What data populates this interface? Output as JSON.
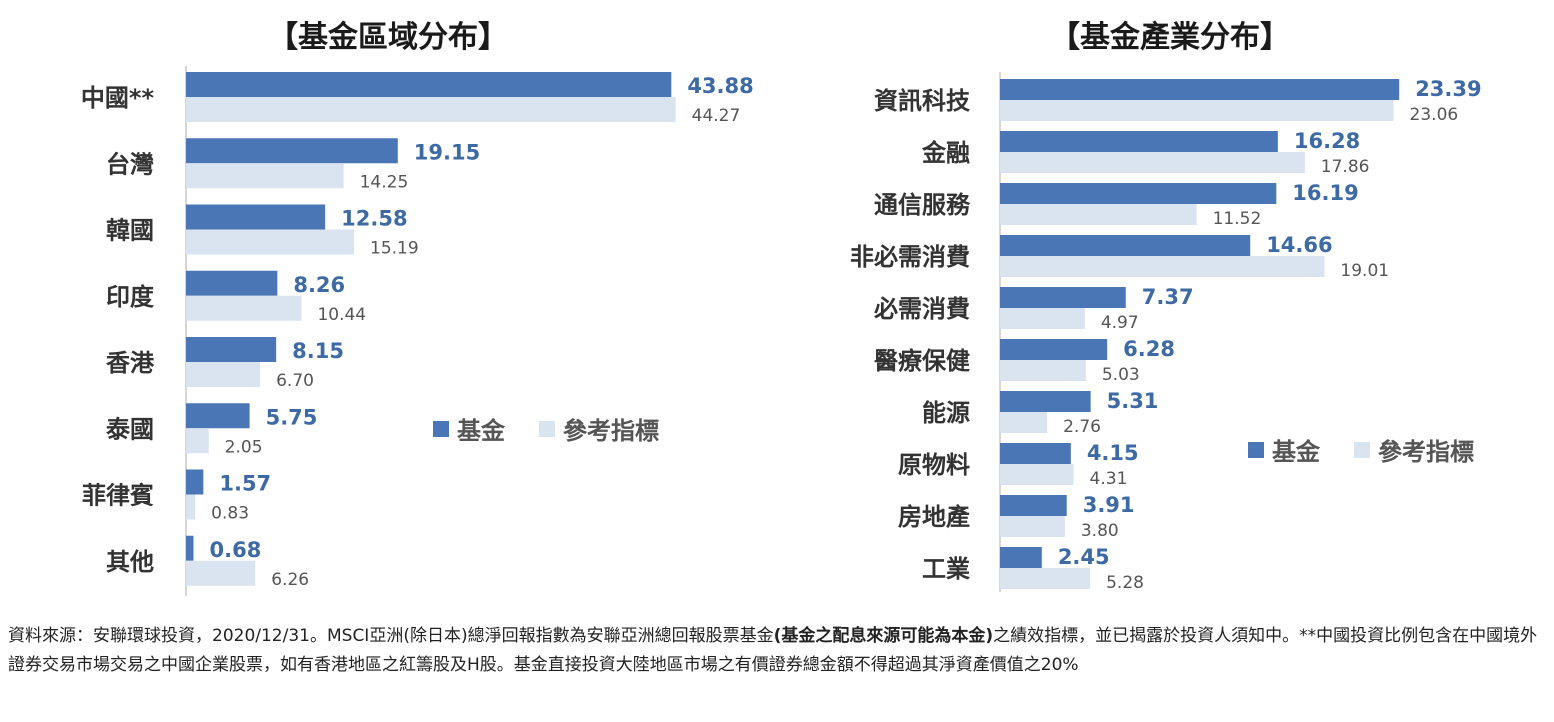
{
  "colors": {
    "fund": "#4a76b5",
    "benchmark": "#dae3f0",
    "fund_text": "#3d6aa5",
    "bench_text": "#555555",
    "axis": "#c8c8c8"
  },
  "legend": {
    "fund": "基金",
    "benchmark": "參考指標"
  },
  "chart_data": [
    {
      "type": "bar",
      "orientation": "horizontal",
      "title": "【基金區域分布】",
      "categories": [
        "中國**",
        "台灣",
        "韓國",
        "印度",
        "香港",
        "泰國",
        "菲律賓",
        "其他"
      ],
      "series": [
        {
          "name": "基金",
          "values": [
            43.88,
            19.15,
            12.58,
            8.26,
            8.15,
            5.75,
            1.57,
            0.68
          ]
        },
        {
          "name": "參考指標",
          "values": [
            44.27,
            14.25,
            15.19,
            10.44,
            6.7,
            2.05,
            0.83,
            6.26
          ]
        }
      ],
      "value_labels": {
        "基金": [
          "43.88",
          "19.15",
          "12.58",
          "8.26",
          "8.15",
          "5.75",
          "1.57",
          "0.68"
        ],
        "參考指標": [
          "44.27",
          "14.25",
          "15.19",
          "10.44",
          "6.70",
          "2.05",
          "0.83",
          "6.26"
        ]
      },
      "xlim": [
        0,
        50
      ],
      "grid": false,
      "legend_position": "right-middle"
    },
    {
      "type": "bar",
      "orientation": "horizontal",
      "title": "【基金產業分布】",
      "categories": [
        "資訊科技",
        "金融",
        "通信服務",
        "非必需消費",
        "必需消費",
        "醫療保健",
        "能源",
        "原物料",
        "房地產",
        "工業"
      ],
      "series": [
        {
          "name": "基金",
          "values": [
            23.39,
            16.28,
            16.19,
            14.66,
            7.37,
            6.28,
            5.31,
            4.15,
            3.91,
            2.45
          ]
        },
        {
          "name": "參考指標",
          "values": [
            23.06,
            17.86,
            11.52,
            19.01,
            4.97,
            5.03,
            2.76,
            4.31,
            3.8,
            5.28
          ]
        }
      ],
      "value_labels": {
        "基金": [
          "23.39",
          "16.28",
          "16.19",
          "14.66",
          "7.37",
          "6.28",
          "5.31",
          "4.15",
          "3.91",
          "2.45"
        ],
        "參考指標": [
          "23.06",
          "17.86",
          "11.52",
          "19.01",
          "4.97",
          "5.03",
          "2.76",
          "4.31",
          "3.80",
          "5.28"
        ]
      },
      "xlim": [
        0,
        30
      ],
      "grid": false,
      "legend_position": "right-bottom"
    }
  ],
  "footnote": {
    "part1": "資料來源：安聯環球投資，2020/12/31。MSCI亞洲(除日本)總淨回報指數為安聯亞洲總回報股票基金",
    "bold": "(基金之配息來源可能為本金)",
    "part2": "之績效指標，並已揭露於投資人須知中。**中國投資比例包含在中國境外證券交易市場交易之中國企業股票，如有香港地區之紅籌股及H股。基金直接投資大陸地區市場之有價證券總金額不得超過其淨資產價值之20%"
  }
}
